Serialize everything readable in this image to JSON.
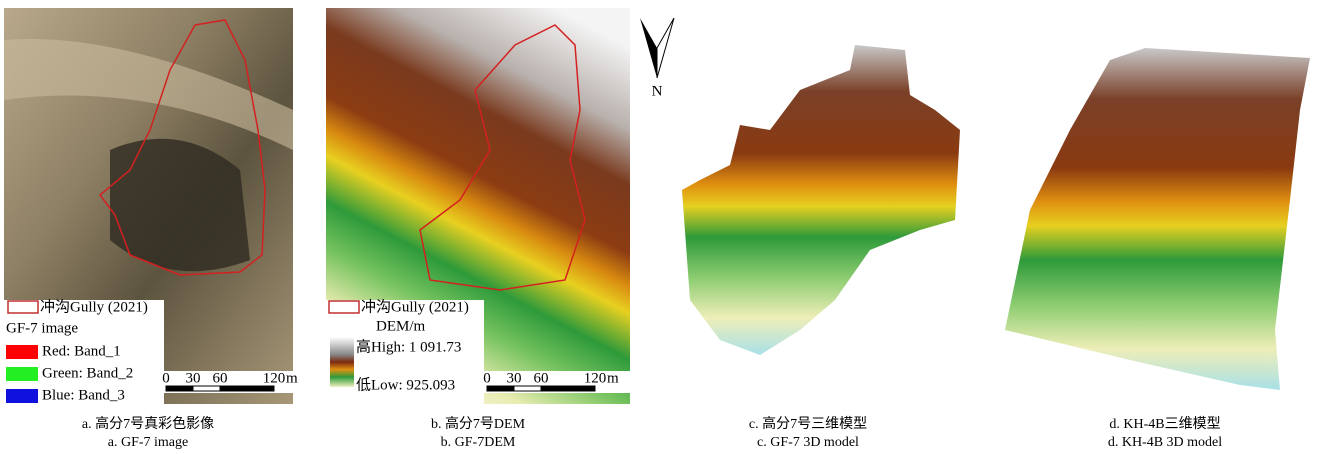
{
  "north": "N",
  "panels": [
    {
      "caption_cn": "a. 高分7号真彩色影像",
      "caption_en": "a. GF-7 image",
      "legend": {
        "boundary": "冲沟Gully (2021)",
        "title": "GF-7 image",
        "items": [
          "Red: Band_1",
          "Green: Band_2",
          "Blue: Band_3"
        ]
      },
      "scale": {
        "ticks": [
          0,
          30,
          60,
          120
        ],
        "unit": "m"
      }
    },
    {
      "caption_cn": "b. 高分7号DEM",
      "caption_en": "b. GF-7DEM",
      "legend": {
        "boundary": "冲沟Gully (2021)",
        "title": "DEM/m",
        "high": "高High: 1 091.73",
        "low": "低Low: 925.093"
      },
      "scale": {
        "ticks": [
          0,
          30,
          60,
          120
        ],
        "unit": "m"
      }
    },
    {
      "caption_cn": "c. 高分7号三维模型",
      "caption_en": "c. GF-7 3D model"
    },
    {
      "caption_cn": "d. KH-4B三维模型",
      "caption_en": "d. KH-4B 3D model"
    }
  ]
}
